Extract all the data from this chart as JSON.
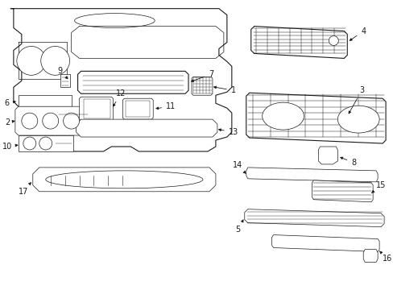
{
  "bg_color": "#ffffff",
  "line_color": "#1a1a1a",
  "label_color": "#000000",
  "fig_width": 4.89,
  "fig_height": 3.6,
  "dpi": 100,
  "lw_main": 0.8,
  "lw_thin": 0.5,
  "label_fontsize": 7.0
}
